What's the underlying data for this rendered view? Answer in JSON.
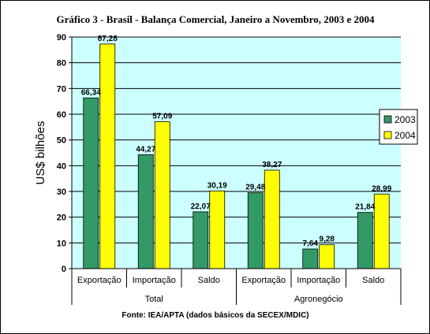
{
  "chart_data": {
    "type": "bar",
    "title": "Gráfico 3 - Brasil - Balança Comercial, Janeiro a Novembro, 2003 e 2004",
    "ylabel": "US$ bilhões",
    "ylim": [
      0,
      90
    ],
    "yticks": [
      0,
      10,
      20,
      30,
      40,
      50,
      60,
      70,
      80,
      90
    ],
    "groups": [
      {
        "name": "Total",
        "categories": [
          "Exportação",
          "Importação",
          "Saldo"
        ]
      },
      {
        "name": "Agronegócio",
        "categories": [
          "Exportação",
          "Importação",
          "Saldo"
        ]
      }
    ],
    "series": [
      {
        "name": "2003",
        "color": "#339966",
        "values": [
          66.34,
          44.27,
          22.07,
          29.48,
          7.64,
          21.84
        ],
        "labels": [
          "66,34",
          "44,27",
          "22,07",
          "29,48",
          "7,64",
          "21,84"
        ]
      },
      {
        "name": "2004",
        "color": "#ffff00",
        "values": [
          87.28,
          57.09,
          30.19,
          38.27,
          9.28,
          28.99
        ],
        "labels": [
          "87,28",
          "57,09",
          "30,19",
          "38,27",
          "9,28",
          "28,99"
        ]
      }
    ],
    "grid": true,
    "legend_position": "right",
    "plot_background": "#ccffff",
    "source": "Fonte: IEA/APTA (dados básicos da SECEX/MDIC)"
  }
}
